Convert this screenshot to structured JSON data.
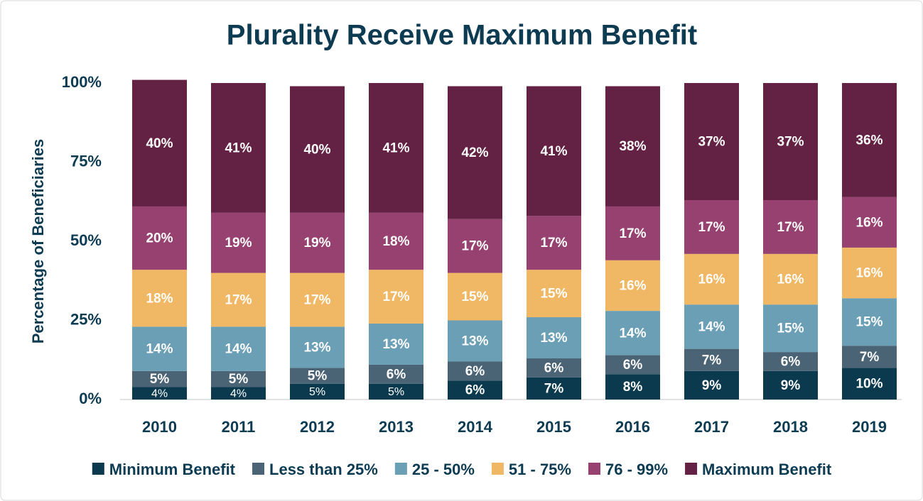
{
  "chart_data": {
    "type": "stacked_bar",
    "title": "Plurality Receive Maximum Benefit",
    "y_label": "Percentage of Beneficiaries",
    "categories": [
      "2010",
      "2011",
      "2012",
      "2013",
      "2014",
      "2015",
      "2016",
      "2017",
      "2018",
      "2019"
    ],
    "ylim": [
      0,
      100
    ],
    "yticks": [
      {
        "value": 0,
        "label": "0%"
      },
      {
        "value": 25,
        "label": "25%"
      },
      {
        "value": 50,
        "label": "50%"
      },
      {
        "value": 75,
        "label": "75%"
      },
      {
        "value": 100,
        "label": "100%"
      }
    ],
    "series": [
      {
        "name": "Minimum Benefit",
        "color": "#0b3a4f",
        "values": [
          4,
          4,
          5,
          5,
          6,
          7,
          8,
          9,
          9,
          10
        ],
        "value_labels": [
          "4%",
          "4%",
          "5%",
          "5%",
          "6%",
          "7%",
          "8%",
          "9%",
          "9%",
          "10%"
        ]
      },
      {
        "name": "Less than 25%",
        "color": "#4a6476",
        "values": [
          5,
          5,
          5,
          6,
          6,
          6,
          6,
          7,
          6,
          7
        ],
        "value_labels": [
          "5%",
          "5%",
          "5%",
          "6%",
          "6%",
          "6%",
          "6%",
          "7%",
          "6%",
          "7%"
        ]
      },
      {
        "name": "25 - 50%",
        "color": "#6b9fb5",
        "values": [
          14,
          14,
          13,
          13,
          13,
          13,
          14,
          14,
          15,
          15
        ],
        "value_labels": [
          "14%",
          "14%",
          "13%",
          "13%",
          "13%",
          "13%",
          "14%",
          "14%",
          "15%",
          "15%"
        ]
      },
      {
        "name": "51 - 75%",
        "color": "#f0b864",
        "values": [
          18,
          17,
          17,
          17,
          15,
          15,
          16,
          16,
          16,
          16
        ],
        "value_labels": [
          "18%",
          "17%",
          "17%",
          "17%",
          "15%",
          "15%",
          "16%",
          "16%",
          "16%",
          "16%"
        ]
      },
      {
        "name": "76 - 99%",
        "color": "#964170",
        "values": [
          20,
          19,
          19,
          18,
          17,
          17,
          17,
          17,
          17,
          16
        ],
        "value_labels": [
          "20%",
          "19%",
          "19%",
          "18%",
          "17%",
          "17%",
          "17%",
          "17%",
          "17%",
          "16%"
        ]
      },
      {
        "name": "Maximum Benefit",
        "color": "#632243",
        "values": [
          40,
          41,
          40,
          41,
          42,
          41,
          38,
          37,
          37,
          36
        ],
        "value_labels": [
          "40%",
          "41%",
          "40%",
          "41%",
          "42%",
          "41%",
          "38%",
          "37%",
          "37%",
          "36%"
        ]
      }
    ]
  }
}
